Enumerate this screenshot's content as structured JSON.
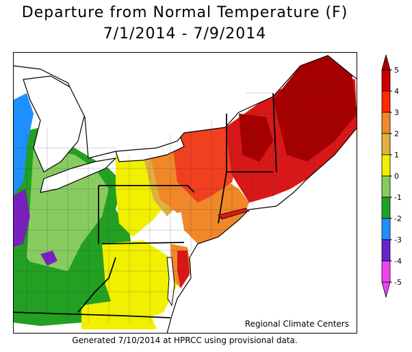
{
  "title": {
    "line1": "Departure from Normal Temperature (F)",
    "line2": "7/1/2014 - 7/9/2014"
  },
  "credit": "Regional Climate Centers",
  "footer": "Generated 7/10/2014 at HPRCC using provisional data.",
  "legend": {
    "labels": [
      "5",
      "4",
      "3",
      "2",
      "1",
      "0",
      "-1",
      "-2",
      "-3",
      "-4",
      "-5"
    ],
    "colors": [
      "#a50000",
      "#cc0000",
      "#ff2a00",
      "#f0882a",
      "#e0b040",
      "#f0f000",
      "#88cc60",
      "#22a022",
      "#1e90ff",
      "#6a22cc",
      "#ee44ee"
    ]
  },
  "map_colors": {
    "water": "#ffffff",
    "deep_red": "#a50000",
    "red": "#d81818",
    "red_orange": "#f04020",
    "orange": "#f0882a",
    "tan": "#e0b040",
    "yellow": "#f0f000",
    "light_green": "#88cc60",
    "green": "#22a022",
    "blue": "#1e90ff",
    "purple": "#7a20c0"
  }
}
